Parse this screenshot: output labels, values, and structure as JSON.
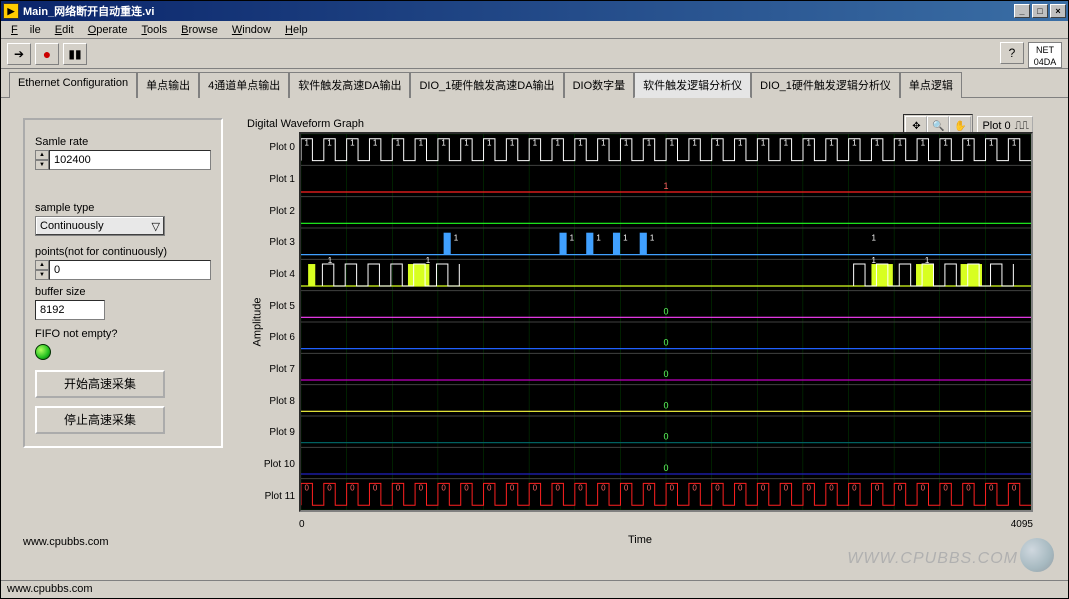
{
  "window": {
    "title": "Main_网络断开自动重连.vi"
  },
  "menu": {
    "file": "File",
    "edit": "Edit",
    "operate": "Operate",
    "tools": "Tools",
    "browse": "Browse",
    "window": "Window",
    "help": "Help"
  },
  "net_indicator": {
    "line1": "NET",
    "line2": "04DA"
  },
  "tabs": [
    "Ethernet Configuration",
    "单点输出",
    "4通道单点输出",
    "软件触发高速DA输出",
    "DIO_1硬件触发高速DA输出",
    "DIO数字量",
    "软件触发逻辑分析仪",
    "DIO_1硬件触发逻辑分析仪",
    "单点逻辑"
  ],
  "active_tab_index": 6,
  "controls": {
    "sample_rate_label": "Samle rate",
    "sample_rate_value": "102400",
    "sample_type_label": "sample type",
    "sample_type_value": "Continuously",
    "points_label": "points(not for continuously)",
    "points_value": "0",
    "buffer_label": "buffer size",
    "buffer_value": "8192",
    "fifo_label": "FIFO not empty?",
    "start_btn": "开始高速采集",
    "stop_btn": "停止高速采集"
  },
  "graph": {
    "title": "Digital Waveform Graph",
    "legend_label": "Plot 0",
    "ylabel": "Amplitude",
    "xlabel": "Time",
    "xlim": [
      0,
      4095
    ],
    "xtick_min": "0",
    "xtick_max": "4095",
    "canvas_bg": "#000000",
    "grid_color": "#004000",
    "text_color": "#ffffff",
    "n_plots": 12,
    "plot_labels": [
      "Plot 0",
      "Plot 1",
      "Plot 2",
      "Plot 3",
      "Plot 4",
      "Plot 5",
      "Plot 6",
      "Plot 7",
      "Plot 8",
      "Plot 9",
      "Plot 10",
      "Plot 11"
    ],
    "plot_colors": [
      "#ffffff",
      "#ff2020",
      "#20ff20",
      "#40a0ff",
      "#d8ff20",
      "#ff40ff",
      "#2060ff",
      "#c000c0",
      "#ffff40",
      "#006060",
      "#2020c0",
      "#ff2020"
    ],
    "square_period": 128,
    "plots": [
      {
        "type": "square",
        "markers": "1",
        "marker_color": "#ffffff"
      },
      {
        "type": "flat",
        "level": 0,
        "center_marker": "1",
        "marker_color": "#ff6060"
      },
      {
        "type": "flat",
        "level": 0
      },
      {
        "type": "pulses",
        "positions": [
          800,
          1450,
          1600,
          1750,
          1900
        ],
        "markers": "1",
        "marker_color": "#ffffff"
      },
      {
        "type": "square_yellow",
        "markers": "1",
        "marker_color": "#ffffff"
      },
      {
        "type": "flat",
        "level": 0,
        "center_marker": "0",
        "marker_color": "#60ff60"
      },
      {
        "type": "flat",
        "level": 0,
        "center_marker": "0",
        "marker_color": "#60ff60"
      },
      {
        "type": "flat",
        "level": 0,
        "center_marker": "0",
        "marker_color": "#60ff60"
      },
      {
        "type": "flat",
        "level": 0,
        "center_marker": "0",
        "marker_color": "#60ff60"
      },
      {
        "type": "flat",
        "level": 0,
        "center_marker": "0",
        "marker_color": "#60ff60"
      },
      {
        "type": "flat",
        "level": 0,
        "center_marker": "0",
        "marker_color": "#60ff60"
      },
      {
        "type": "square",
        "markers": "0",
        "marker_color": "#ff6060"
      }
    ]
  },
  "footer_link": "www.cpubbs.com",
  "statusbar": "www.cpubbs.com",
  "watermark": "WWW.CPUBBS.COM"
}
